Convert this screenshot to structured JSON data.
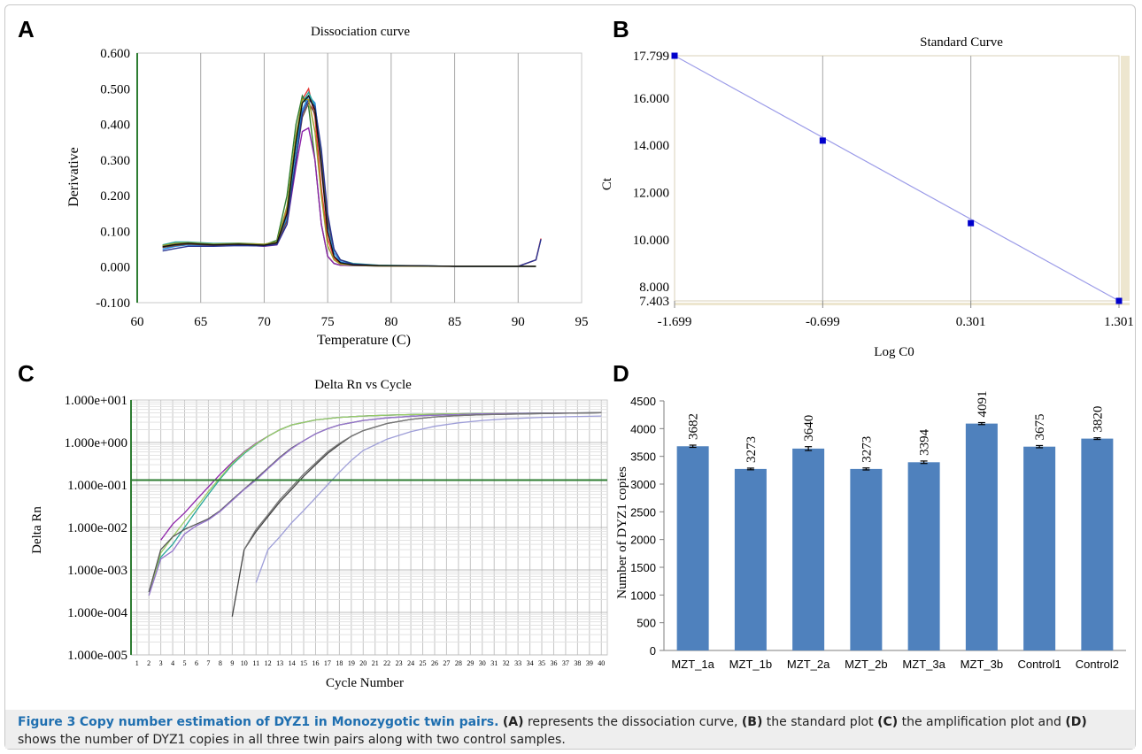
{
  "figure": {
    "caption_label": "Figure 3",
    "caption_title": "Copy number estimation of DYZ1 in Monozygotic twin pairs.",
    "caption_parts": [
      {
        "ref": "(A)",
        "text": " represents the dissociation curve, "
      },
      {
        "ref": "(B)",
        "text": " the standard plot "
      },
      {
        "ref": "(C)",
        "text": " the amplification plot and "
      },
      {
        "ref": "(D)",
        "text": " shows the number of DYZ1 copies in all three twin pairs along with two control samples."
      }
    ]
  },
  "chart_data": [
    {
      "panel": "A",
      "type": "line",
      "title": "Dissociation curve",
      "xlabel": "Temperature (C)",
      "ylabel": "Derivative",
      "xlim": [
        60,
        95
      ],
      "ylim": [
        -0.1,
        0.6
      ],
      "x_ticks": [
        "60",
        "65",
        "70",
        "75",
        "80",
        "85",
        "90",
        "95"
      ],
      "y_ticks": [
        "0.600",
        "0.500",
        "0.400",
        "0.300",
        "0.200",
        "0.100",
        "0.000",
        "-0.100"
      ],
      "grid": "vertical",
      "colors": [
        "#e53935",
        "#2e7d32",
        "#1e88e5",
        "#8e24aa",
        "#26a69a",
        "#6d4c41",
        "#283593",
        "#9e9d24",
        "#111111"
      ],
      "series": [
        {
          "x": [
            62,
            63,
            64,
            66,
            68,
            70,
            71,
            71.8,
            72.5,
            73,
            73.5,
            74,
            74.5,
            75,
            75.5,
            76,
            77,
            79,
            85,
            90,
            91.4,
            91.8
          ],
          "y": [
            0.055,
            0.062,
            0.065,
            0.062,
            0.063,
            0.062,
            0.07,
            0.16,
            0.36,
            0.47,
            0.5,
            0.42,
            0.22,
            0.08,
            0.025,
            0.01,
            0.006,
            0.004,
            0.002,
            0.002,
            0.02,
            0.08
          ]
        },
        {
          "x": [
            62,
            63,
            64,
            66,
            68,
            70,
            71,
            71.8,
            72.5,
            73,
            73.5,
            74,
            74.5,
            75,
            75.5,
            76,
            77,
            79,
            85,
            90,
            91.4
          ],
          "y": [
            0.06,
            0.065,
            0.068,
            0.064,
            0.064,
            0.062,
            0.075,
            0.2,
            0.4,
            0.48,
            0.45,
            0.3,
            0.12,
            0.03,
            0.01,
            0.005,
            0.004,
            0.003,
            0.002,
            0.002,
            0.002
          ]
        },
        {
          "x": [
            62,
            63,
            64,
            66,
            68,
            70,
            71,
            71.8,
            72.5,
            73,
            73.5,
            74,
            74.5,
            75,
            75.5,
            76,
            77,
            79,
            85,
            90,
            91.4
          ],
          "y": [
            0.05,
            0.058,
            0.062,
            0.06,
            0.061,
            0.06,
            0.065,
            0.14,
            0.33,
            0.44,
            0.48,
            0.46,
            0.3,
            0.12,
            0.04,
            0.015,
            0.006,
            0.004,
            0.002,
            0.002,
            0.002
          ]
        },
        {
          "x": [
            62,
            63,
            64,
            66,
            68,
            70,
            71,
            71.8,
            72.5,
            73,
            73.5,
            74,
            74.5,
            75,
            75.5,
            76,
            77,
            79,
            85,
            90,
            91.4
          ],
          "y": [
            0.058,
            0.064,
            0.066,
            0.06,
            0.062,
            0.058,
            0.062,
            0.12,
            0.28,
            0.38,
            0.39,
            0.3,
            0.12,
            0.03,
            0.01,
            0.005,
            0.004,
            0.003,
            0.002,
            0.002,
            0.002
          ]
        },
        {
          "x": [
            62,
            63,
            64,
            66,
            68,
            70,
            71,
            71.8,
            72.5,
            73,
            73.5,
            74,
            74.5,
            75,
            75.5,
            76,
            77,
            79,
            85,
            90,
            91.4
          ],
          "y": [
            0.062,
            0.07,
            0.07,
            0.066,
            0.067,
            0.064,
            0.07,
            0.15,
            0.34,
            0.46,
            0.49,
            0.45,
            0.32,
            0.14,
            0.05,
            0.02,
            0.01,
            0.005,
            0.002,
            0.002,
            0.002
          ]
        },
        {
          "x": [
            62,
            63,
            64,
            66,
            68,
            70,
            71,
            71.8,
            72.5,
            73,
            73.5,
            74,
            74.5,
            75,
            75.5,
            76,
            77,
            79,
            85,
            90,
            91.4
          ],
          "y": [
            0.055,
            0.06,
            0.064,
            0.061,
            0.062,
            0.06,
            0.066,
            0.13,
            0.3,
            0.42,
            0.46,
            0.43,
            0.3,
            0.13,
            0.05,
            0.02,
            0.008,
            0.004,
            0.002,
            0.002,
            0.002
          ]
        },
        {
          "x": [
            62,
            63,
            64,
            66,
            68,
            70,
            71,
            71.8,
            72.5,
            73,
            73.5,
            74,
            74.5,
            75,
            75.5,
            76,
            77,
            79,
            85,
            90,
            91.4,
            91.8
          ],
          "y": [
            0.045,
            0.052,
            0.058,
            0.058,
            0.06,
            0.059,
            0.063,
            0.12,
            0.3,
            0.43,
            0.47,
            0.45,
            0.33,
            0.15,
            0.05,
            0.02,
            0.008,
            0.004,
            0.002,
            0.002,
            0.02,
            0.078
          ]
        },
        {
          "x": [
            62,
            63,
            64,
            66,
            68,
            70,
            71,
            71.8,
            72.5,
            73,
            73.5,
            74,
            74.5,
            75,
            75.5,
            76,
            77,
            79,
            85,
            90,
            91.4
          ],
          "y": [
            0.06,
            0.066,
            0.068,
            0.064,
            0.066,
            0.064,
            0.07,
            0.17,
            0.37,
            0.47,
            0.47,
            0.38,
            0.2,
            0.06,
            0.02,
            0.008,
            0.005,
            0.003,
            0.002,
            0.002,
            0.002
          ]
        },
        {
          "x": [
            62,
            63,
            64,
            66,
            68,
            70,
            71,
            71.8,
            72.5,
            73,
            73.5,
            74,
            74.5,
            75,
            75.5,
            76,
            77,
            79,
            85,
            90,
            91.4
          ],
          "y": [
            0.057,
            0.063,
            0.066,
            0.062,
            0.064,
            0.061,
            0.068,
            0.15,
            0.35,
            0.46,
            0.48,
            0.44,
            0.28,
            0.1,
            0.03,
            0.012,
            0.006,
            0.004,
            0.002,
            0.002,
            0.002
          ]
        }
      ]
    },
    {
      "panel": "B",
      "type": "scatter",
      "title": "Standard Curve",
      "xlabel": "Log C0",
      "ylabel": "Ct",
      "xlim": [
        -1.699,
        1.301
      ],
      "ylim": [
        7.403,
        17.799
      ],
      "x_ticks": [
        "-1.699",
        "-0.699",
        "0.301",
        "1.301"
      ],
      "y_ticks": [
        "17.799",
        "16.000",
        "14.000",
        "12.000",
        "10.000",
        "8.000",
        "7.403"
      ],
      "grid": "vertical",
      "point_color": "#0000cc",
      "line_color": "#9b9be8",
      "points": [
        {
          "x": -1.699,
          "y": 17.799
        },
        {
          "x": -0.699,
          "y": 14.2
        },
        {
          "x": 0.301,
          "y": 10.7
        },
        {
          "x": 1.301,
          "y": 7.403
        }
      ]
    },
    {
      "panel": "C",
      "type": "line",
      "title": "Delta Rn vs Cycle",
      "xlabel": "Cycle Number",
      "ylabel": "Delta Rn",
      "y_scale": "log",
      "xlim": [
        0.5,
        40.5
      ],
      "ylim": [
        1e-05,
        10
      ],
      "x_ticks": [
        "1",
        "2",
        "3",
        "4",
        "5",
        "6",
        "7",
        "8",
        "9",
        "10",
        "11",
        "12",
        "13",
        "14",
        "15",
        "16",
        "17",
        "18",
        "19",
        "20",
        "21",
        "22",
        "23",
        "24",
        "25",
        "26",
        "27",
        "28",
        "29",
        "30",
        "31",
        "32",
        "33",
        "34",
        "35",
        "36",
        "37",
        "38",
        "39",
        "40"
      ],
      "y_ticks": [
        "1.000e+001",
        "1.000e+000",
        "1.000e-001",
        "1.000e-002",
        "1.000e-003",
        "1.000e-004",
        "1.000e-005"
      ],
      "grid": "both",
      "threshold": 0.13,
      "threshold_color": "#2e7d32",
      "series": [
        {
          "color": "#8e24aa",
          "x": [
            3,
            4,
            5,
            6,
            7,
            8,
            9,
            10,
            11,
            12,
            13,
            14,
            16,
            18,
            20,
            22,
            25,
            30,
            35,
            40
          ],
          "y": [
            0.005,
            0.012,
            0.022,
            0.045,
            0.09,
            0.18,
            0.34,
            0.6,
            0.95,
            1.4,
            2.0,
            2.6,
            3.4,
            3.9,
            4.2,
            4.4,
            4.6,
            4.8,
            4.9,
            5.0
          ]
        },
        {
          "color": "#26a69a",
          "x": [
            2,
            3,
            4,
            5,
            6,
            7,
            8,
            9,
            10,
            11,
            12,
            13,
            14,
            16,
            18,
            20,
            22,
            25,
            30,
            35,
            40
          ],
          "y": [
            0.0003,
            0.002,
            0.004,
            0.01,
            0.025,
            0.06,
            0.14,
            0.3,
            0.55,
            0.9,
            1.4,
            2.0,
            2.6,
            3.4,
            3.9,
            4.2,
            4.4,
            4.6,
            4.8,
            4.9,
            5.0
          ]
        },
        {
          "color": "#9ccc65",
          "x": [
            2,
            3,
            4,
            5,
            6,
            7,
            8,
            9,
            10,
            11,
            12,
            13,
            14,
            16,
            18,
            20,
            22,
            25,
            30,
            35,
            40
          ],
          "y": [
            0.00025,
            0.0025,
            0.006,
            0.014,
            0.03,
            0.07,
            0.15,
            0.32,
            0.58,
            0.92,
            1.4,
            2.0,
            2.6,
            3.4,
            3.9,
            4.2,
            4.4,
            4.6,
            4.8,
            4.9,
            5.0
          ]
        },
        {
          "color": "#555555",
          "x": [
            2,
            3,
            4,
            5,
            6,
            7,
            8,
            9,
            10,
            11,
            12,
            13,
            14,
            15,
            16,
            17,
            18,
            20,
            22,
            25,
            30,
            35,
            40
          ],
          "y": [
            0.0003,
            0.003,
            0.006,
            0.009,
            0.012,
            0.016,
            0.025,
            0.045,
            0.08,
            0.14,
            0.25,
            0.45,
            0.75,
            1.1,
            1.6,
            2.1,
            2.6,
            3.3,
            3.8,
            4.3,
            4.7,
            4.9,
            5.0
          ]
        },
        {
          "color": "#9575cd",
          "x": [
            2,
            3,
            4,
            5,
            6,
            7,
            8,
            9,
            10,
            11,
            12,
            13,
            14,
            15,
            16,
            17,
            18,
            20,
            22,
            25,
            30,
            35,
            40
          ],
          "y": [
            0.00025,
            0.0018,
            0.0028,
            0.007,
            0.011,
            0.015,
            0.024,
            0.043,
            0.078,
            0.13,
            0.24,
            0.43,
            0.72,
            1.1,
            1.6,
            2.1,
            2.6,
            3.3,
            3.8,
            4.3,
            4.7,
            4.9,
            5.0
          ]
        },
        {
          "color": "#444444",
          "x": [
            9,
            10,
            11,
            12,
            13,
            14,
            15,
            16,
            17,
            18,
            19,
            20,
            22,
            24,
            26,
            28,
            30,
            35,
            40
          ],
          "y": [
            8e-05,
            0.003,
            0.008,
            0.018,
            0.04,
            0.08,
            0.16,
            0.3,
            0.55,
            0.9,
            1.4,
            1.9,
            2.8,
            3.5,
            4.0,
            4.3,
            4.5,
            4.8,
            5.0
          ]
        },
        {
          "color": "#777777",
          "x": [
            10,
            11,
            12,
            13,
            14,
            15,
            16,
            17,
            18,
            19,
            20,
            22,
            24,
            26,
            28,
            30,
            35,
            40
          ],
          "y": [
            0.003,
            0.009,
            0.02,
            0.045,
            0.09,
            0.18,
            0.33,
            0.6,
            0.95,
            1.4,
            1.9,
            2.8,
            3.5,
            4.0,
            4.3,
            4.5,
            4.8,
            5.0
          ]
        },
        {
          "color": "#9e9ed8",
          "x": [
            11,
            12,
            13,
            14,
            15,
            16,
            17,
            18,
            19,
            20,
            22,
            24,
            26,
            28,
            30,
            32,
            35,
            38,
            40
          ],
          "y": [
            0.0005,
            0.003,
            0.006,
            0.013,
            0.025,
            0.05,
            0.1,
            0.2,
            0.38,
            0.65,
            1.2,
            1.8,
            2.4,
            2.9,
            3.3,
            3.6,
            3.9,
            4.1,
            4.2
          ]
        }
      ]
    },
    {
      "panel": "D",
      "type": "bar",
      "title": "",
      "xlabel": "",
      "ylabel": "Number of DYZ1 copies",
      "ylim": [
        0,
        4500
      ],
      "y_ticks": [
        "0",
        "500",
        "1000",
        "1500",
        "2000",
        "2500",
        "3000",
        "3500",
        "4000",
        "4500"
      ],
      "grid": "none",
      "bar_color": "#4f81bd",
      "categories": [
        "MZT_1a",
        "MZT_1b",
        "MZT_2a",
        "MZT_2b",
        "MZT_3a",
        "MZT_3b",
        "Control1",
        "Control2"
      ],
      "values": [
        3682,
        3273,
        3640,
        3273,
        3394,
        4091,
        3675,
        3820
      ],
      "value_labels": [
        "3682",
        "3273",
        "3640",
        "3273",
        "3394",
        "4091",
        "3675",
        "3820"
      ],
      "error": [
        20,
        15,
        35,
        18,
        22,
        18,
        20,
        15
      ]
    }
  ]
}
